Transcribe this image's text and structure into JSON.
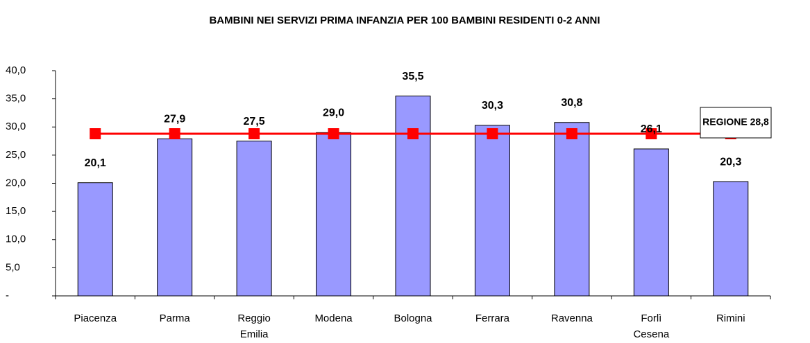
{
  "chart_data": {
    "type": "bar",
    "title": "BAMBINI NEI SERVIZI PRIMA INFANZIA PER 100 BAMBINI RESIDENTI 0-2 ANNI",
    "categories": [
      "Piacenza",
      "Parma",
      "Reggio Emilia",
      "Modena",
      "Bologna",
      "Ferrara",
      "Ravenna",
      "Forlì Cesena",
      "Rimini"
    ],
    "values": [
      20.1,
      27.9,
      27.5,
      29.0,
      35.5,
      30.3,
      30.8,
      26.1,
      20.3
    ],
    "value_labels": [
      "20,1",
      "27,9",
      "27,5",
      "29,0",
      "35,5",
      "30,3",
      "30,8",
      "26,1",
      "20,3"
    ],
    "color": "#9999ff",
    "line_values": [
      28.8,
      28.8,
      28.8,
      28.8,
      28.8,
      28.8,
      28.8,
      28.8,
      28.8
    ],
    "line_color": "#ff0000",
    "annotation": "REGIONE 28,8",
    "ylim": [
      0,
      40
    ],
    "yticks": [
      {
        "value": 0,
        "label": "-"
      },
      {
        "value": 5,
        "label": "5,0"
      },
      {
        "value": 10,
        "label": "10,0"
      },
      {
        "value": 15,
        "label": "15,0"
      },
      {
        "value": 20,
        "label": "20,0"
      },
      {
        "value": 25,
        "label": "25,0"
      },
      {
        "value": 30,
        "label": "30,0"
      },
      {
        "value": 35,
        "label": "35,0"
      },
      {
        "value": 40,
        "label": "40,0"
      }
    ],
    "grid": false
  }
}
